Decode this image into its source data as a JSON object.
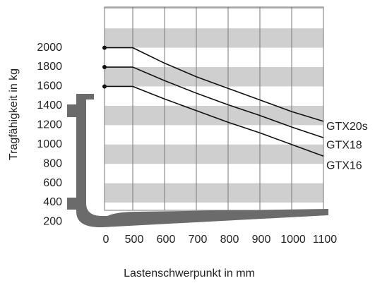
{
  "chart_data": {
    "type": "line",
    "x_label": "Lastenschwerpunkt in mm",
    "y_label": "Tragfähigkeit in kg",
    "x": [
      0,
      500,
      600,
      700,
      800,
      900,
      1000,
      1100
    ],
    "xticks": [
      0,
      500,
      600,
      700,
      800,
      900,
      1000,
      1100
    ],
    "ylim": [
      320,
      2420
    ],
    "yticks": [
      200,
      400,
      600,
      800,
      1000,
      1200,
      1400,
      1600,
      1800,
      2000
    ],
    "grid": "bands",
    "series": [
      {
        "name": "GTX20s",
        "color": "#111111",
        "values": [
          2000,
          2000,
          1840,
          1700,
          1580,
          1460,
          1340,
          1240
        ]
      },
      {
        "name": "GTX18",
        "color": "#111111",
        "values": [
          1800,
          1800,
          1660,
          1530,
          1410,
          1300,
          1180,
          1070
        ]
      },
      {
        "name": "GTX16",
        "color": "#111111",
        "values": [
          1600,
          1600,
          1470,
          1350,
          1230,
          1120,
          1000,
          880
        ]
      }
    ]
  }
}
